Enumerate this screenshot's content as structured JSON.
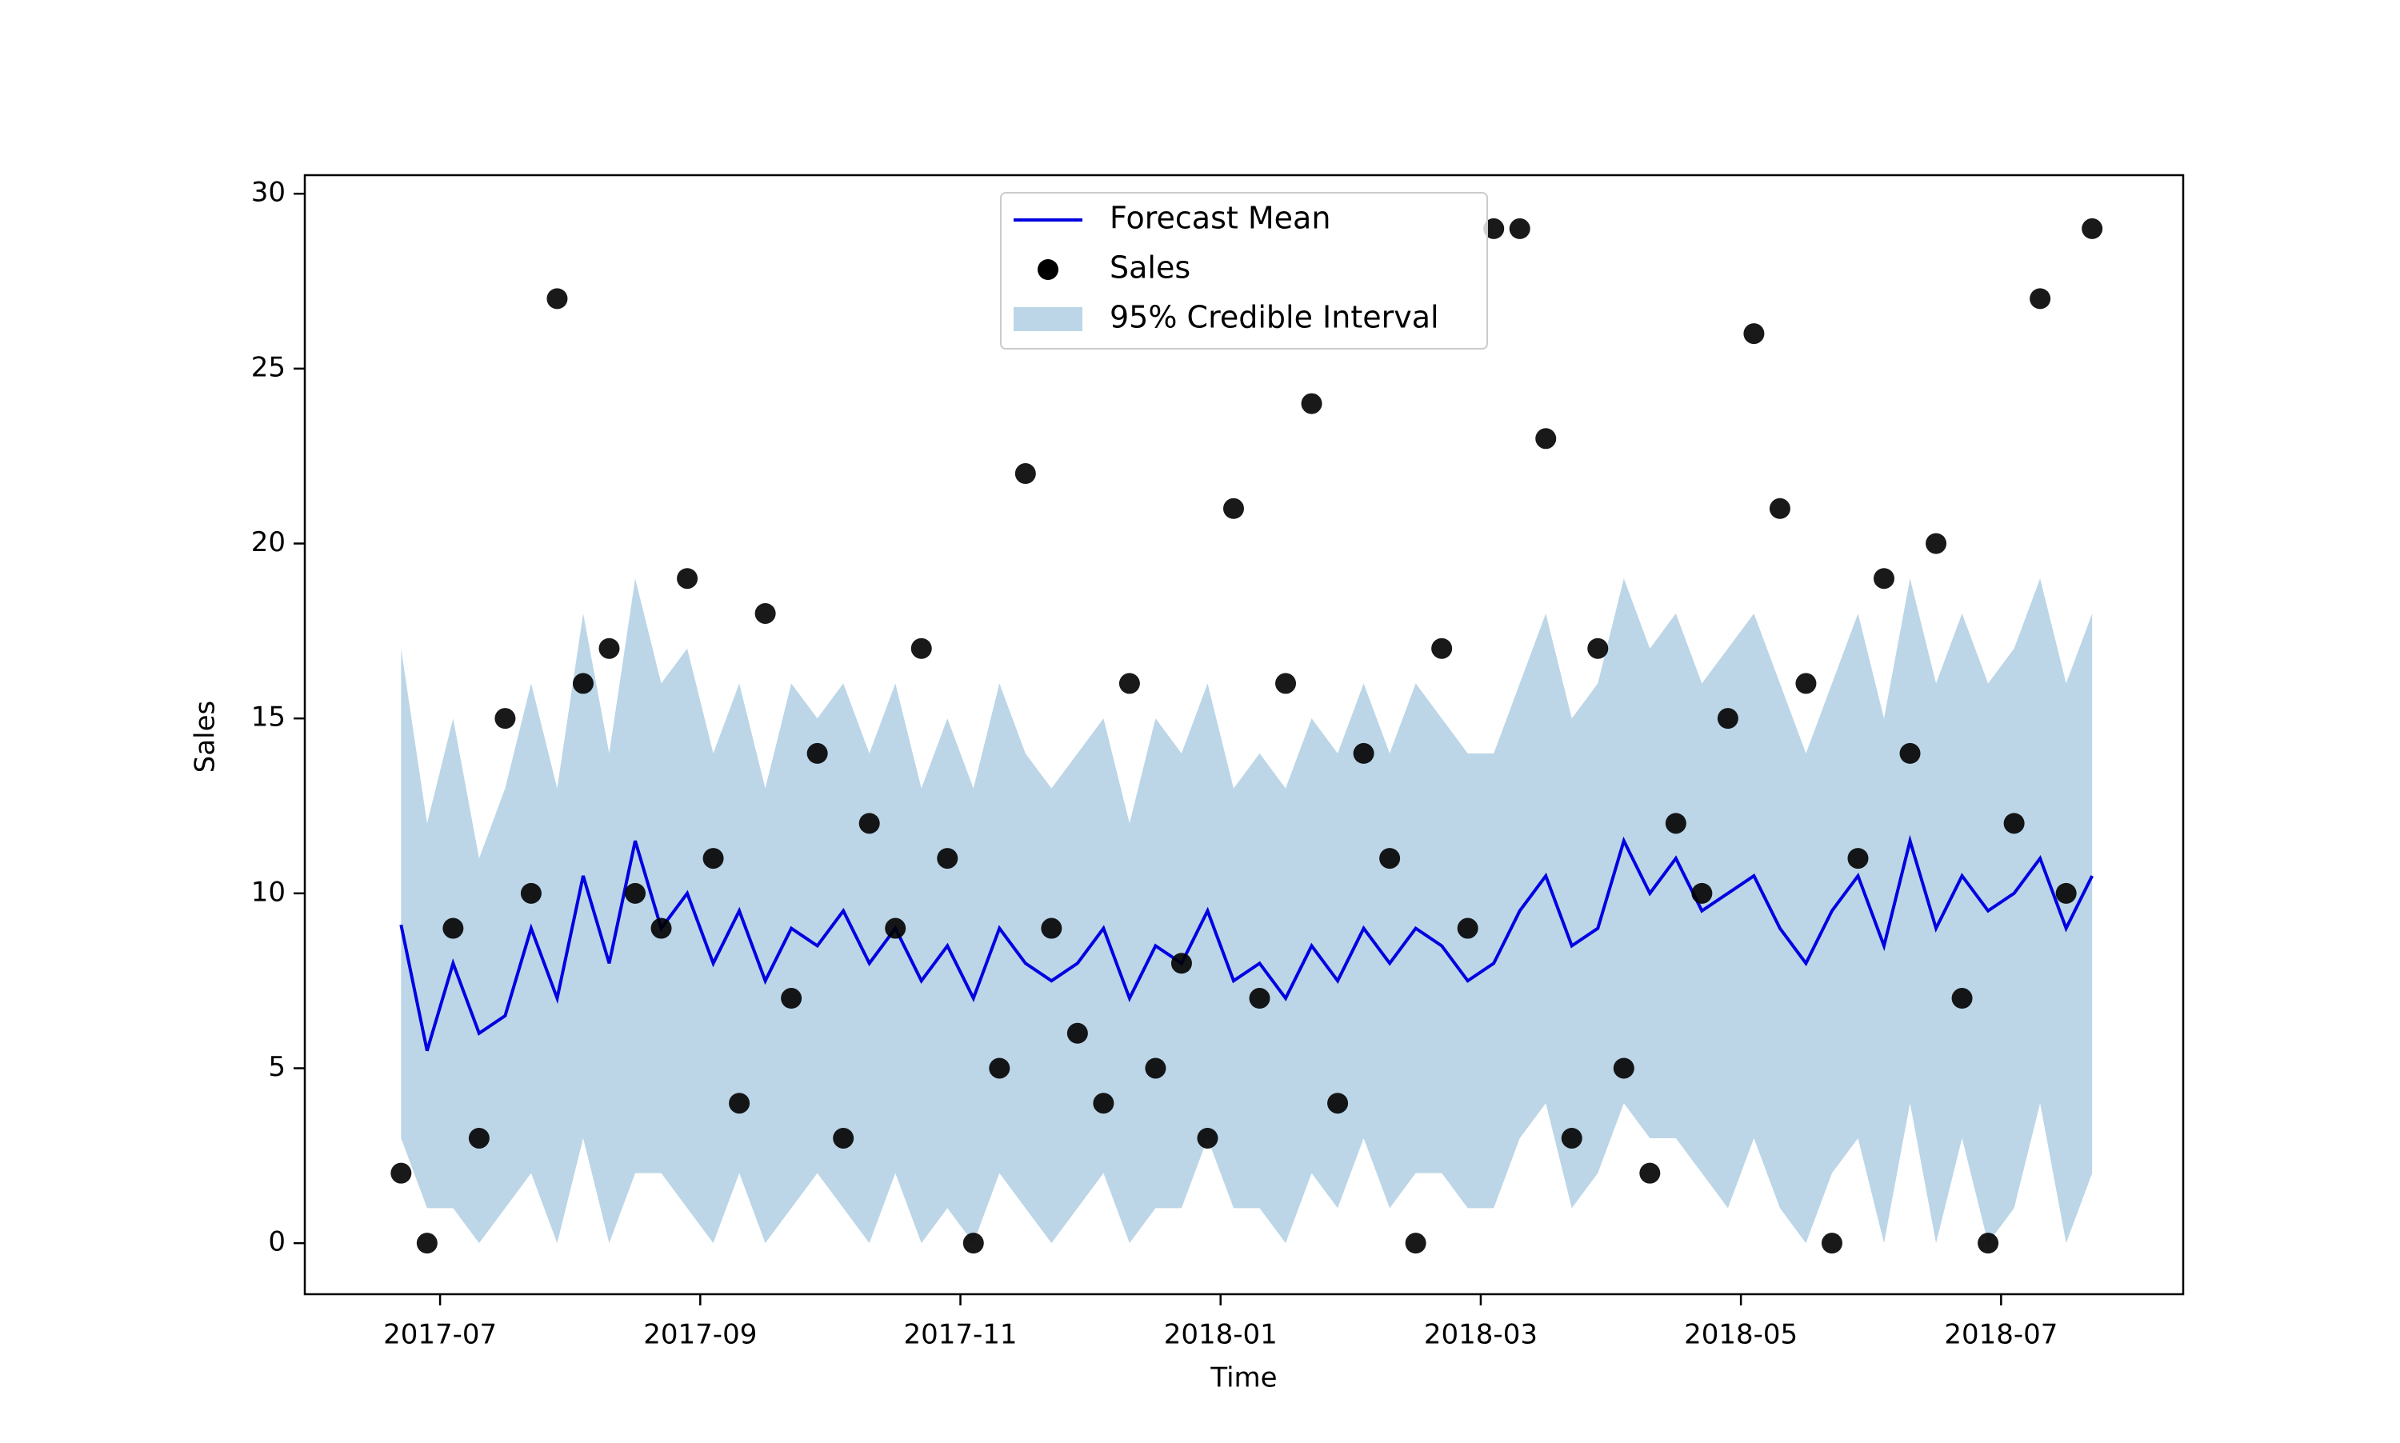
{
  "chart_data": {
    "type": "line",
    "x_label": "Time",
    "y_label": "Sales",
    "x": [
      -0.3,
      -0.1,
      0.1,
      0.3,
      0.5,
      0.7,
      0.9,
      1.1,
      1.3,
      1.5,
      1.7,
      1.9,
      2.1,
      2.3,
      2.5,
      2.7,
      2.9,
      3.1,
      3.3,
      3.5,
      3.7,
      3.9,
      4.1,
      4.3,
      4.5,
      4.7,
      4.9,
      5.1,
      5.3,
      5.5,
      5.7,
      5.9,
      6.1,
      6.3,
      6.5,
      6.7,
      6.9,
      7.1,
      7.3,
      7.5,
      7.7,
      7.9,
      8.1,
      8.3,
      8.5,
      8.7,
      8.9,
      9.1,
      9.3,
      9.5,
      9.7,
      9.9,
      10.1,
      10.3,
      10.5,
      10.7,
      10.9,
      11.1,
      11.3,
      11.5,
      11.7,
      11.9,
      12.1,
      12.3,
      12.5,
      12.7
    ],
    "series": [
      {
        "name": "Forecast Mean",
        "type": "line",
        "color": "#0000e0",
        "values": [
          9.1,
          5.5,
          8.0,
          6.0,
          6.5,
          9.0,
          7.0,
          10.5,
          8.0,
          11.5,
          9.0,
          10.0,
          8.0,
          9.5,
          7.5,
          9.0,
          8.5,
          9.5,
          8.0,
          9.0,
          7.5,
          8.5,
          7.0,
          9.0,
          8.0,
          7.5,
          8.0,
          9.0,
          7.0,
          8.5,
          8.0,
          9.5,
          7.5,
          8.0,
          7.0,
          8.5,
          7.5,
          9.0,
          8.0,
          9.0,
          8.5,
          7.5,
          8.0,
          9.5,
          10.5,
          8.5,
          9.0,
          11.5,
          10.0,
          11.0,
          9.5,
          10.0,
          10.5,
          9.0,
          8.0,
          9.5,
          10.5,
          8.5,
          11.5,
          9.0,
          10.5,
          9.5,
          10.0,
          11.0,
          9.0,
          10.5
        ]
      },
      {
        "name": "Sales",
        "type": "scatter",
        "color": "#000000",
        "values": [
          2,
          0,
          9,
          3,
          15,
          10,
          27,
          16,
          17,
          10,
          9,
          19,
          11,
          4,
          18,
          7,
          14,
          3,
          12,
          9,
          17,
          11,
          0,
          5,
          22,
          9,
          6,
          4,
          16,
          5,
          8,
          3,
          21,
          7,
          16,
          24,
          4,
          14,
          11,
          0,
          17,
          9,
          29,
          29,
          23,
          3,
          17,
          5,
          2,
          12,
          10,
          15,
          26,
          21,
          16,
          0,
          11,
          19,
          14,
          20,
          7,
          0,
          12,
          27,
          10,
          29
        ]
      },
      {
        "name": "95% Credible Interval",
        "type": "band",
        "color": "#bcd6e8",
        "lower": [
          3,
          1,
          1,
          0,
          1,
          2,
          0,
          3,
          0,
          2,
          2,
          1,
          0,
          2,
          0,
          1,
          2,
          1,
          0,
          2,
          0,
          1,
          0,
          2,
          1,
          0,
          1,
          2,
          0,
          1,
          1,
          3,
          1,
          1,
          0,
          2,
          1,
          3,
          1,
          2,
          2,
          1,
          1,
          3,
          4,
          1,
          2,
          4,
          3,
          3,
          2,
          1,
          3,
          1,
          0,
          2,
          3,
          0,
          4,
          0,
          3,
          0,
          1,
          4,
          0,
          2
        ],
        "upper": [
          17,
          12,
          15,
          11,
          13,
          16,
          13,
          18,
          14,
          19,
          16,
          17,
          14,
          16,
          13,
          16,
          15,
          16,
          14,
          16,
          13,
          15,
          13,
          16,
          14,
          13,
          14,
          15,
          12,
          15,
          14,
          16,
          13,
          14,
          13,
          15,
          14,
          16,
          14,
          16,
          15,
          14,
          14,
          16,
          18,
          15,
          16,
          19,
          17,
          18,
          16,
          17,
          18,
          16,
          14,
          16,
          18,
          15,
          19,
          16,
          18,
          16,
          17,
          19,
          16,
          18
        ]
      }
    ],
    "xlim": [
      -1.04,
      13.4
    ],
    "xticks": [
      {
        "value": 0,
        "label": "2017-07"
      },
      {
        "value": 2,
        "label": "2017-09"
      },
      {
        "value": 4,
        "label": "2017-11"
      },
      {
        "value": 6,
        "label": "2018-01"
      },
      {
        "value": 8,
        "label": "2018-03"
      },
      {
        "value": 10,
        "label": "2018-05"
      },
      {
        "value": 12,
        "label": "2018-07"
      }
    ],
    "ylim": [
      -1.46,
      30.53
    ],
    "yticks": [
      0,
      5,
      10,
      15,
      20,
      25,
      30
    ],
    "legend": "upper center"
  }
}
